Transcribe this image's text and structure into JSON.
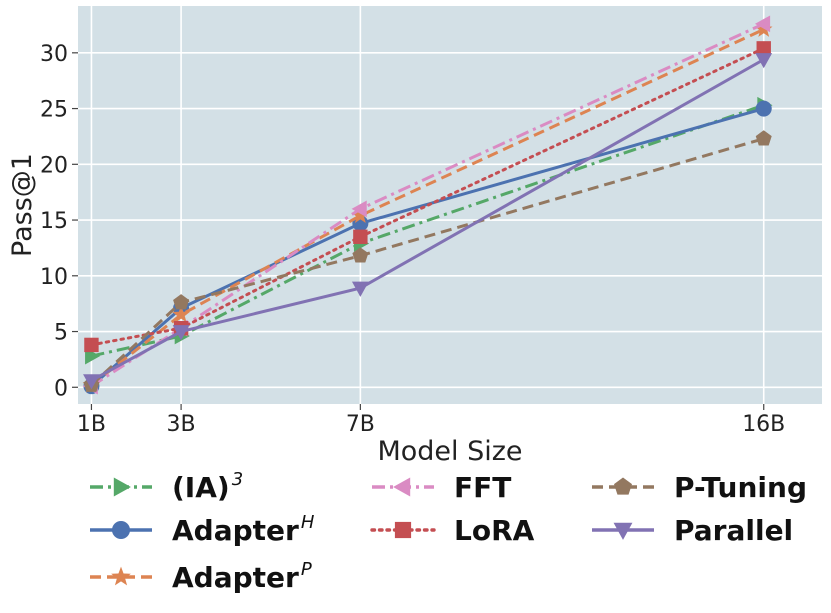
{
  "chart_data": {
    "type": "line",
    "title": "",
    "xlabel": "Model Size",
    "ylabel": "Pass@1",
    "x": [
      1,
      3,
      7,
      16
    ],
    "x_tick_labels": [
      "1B",
      "3B",
      "7B",
      "16B"
    ],
    "xlim": [
      0.7,
      17.3
    ],
    "ylim": [
      -1.5,
      34.2
    ],
    "y_ticks": [
      0,
      5,
      10,
      15,
      20,
      25,
      30
    ],
    "y_tick_labels": [
      "0",
      "5",
      "10",
      "15",
      "20",
      "25",
      "30"
    ],
    "grid": true,
    "legend_position": "bottom",
    "series": [
      {
        "name": "(IA)",
        "sup": "3",
        "color": "#55a868",
        "marker": "triangle-right",
        "dash": "dashdot",
        "values": [
          2.8,
          4.6,
          12.9,
          25.3
        ]
      },
      {
        "name": "Adapter",
        "sup": "H",
        "color": "#4c72b0",
        "marker": "circle",
        "dash": "solid",
        "values": [
          0.1,
          7.1,
          14.7,
          25.0
        ]
      },
      {
        "name": "Adapter",
        "sup": "P",
        "color": "#dd8452",
        "marker": "star",
        "dash": "dashed",
        "values": [
          0.2,
          6.5,
          15.4,
          32.1
        ]
      },
      {
        "name": "FFT",
        "sup": "",
        "color": "#da8bc3",
        "marker": "triangle-left",
        "dash": "dashdot",
        "values": [
          0.1,
          5.3,
          16.0,
          32.6
        ]
      },
      {
        "name": "LoRA",
        "sup": "",
        "color": "#c44e52",
        "marker": "square",
        "dash": "dotted",
        "values": [
          3.8,
          5.3,
          13.5,
          30.4
        ]
      },
      {
        "name": "P-Tuning",
        "sup": "",
        "color": "#937860",
        "marker": "pentagon",
        "dash": "dashed",
        "values": [
          0.2,
          7.6,
          11.8,
          22.3
        ]
      },
      {
        "name": "Parallel",
        "sup": "",
        "color": "#8172b3",
        "marker": "triangle-down",
        "dash": "solid",
        "values": [
          0.6,
          5.0,
          8.9,
          29.4
        ]
      }
    ]
  }
}
